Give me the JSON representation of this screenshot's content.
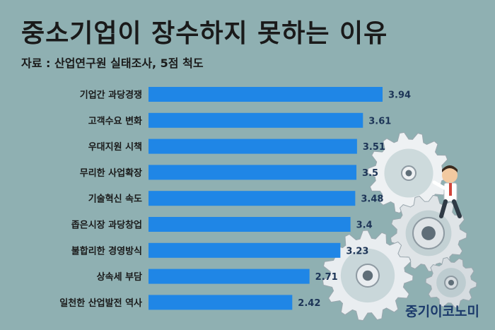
{
  "title": "중소기업이 장수하지 못하는 이유",
  "subtitle": "자료 : 산업연구원 실태조사, 5점 척도",
  "brand": "중기이코노미",
  "colors": {
    "background": "#8fb0b2",
    "bar": "#1f86e6",
    "value_text": "#1d3557",
    "brand": "#1b3a6b"
  },
  "chart_data": {
    "type": "bar",
    "orientation": "horizontal",
    "categories": [
      "기업간 과당경쟁",
      "고객수요 변화",
      "우대지원 시책",
      "무리한 사업확장",
      "기술혁신 속도",
      "좁은시장 과당창업",
      "불합리한 경영방식",
      "상속세 부담",
      "일천한 산업발전 역사"
    ],
    "values": [
      3.94,
      3.61,
      3.51,
      3.5,
      3.48,
      3.4,
      3.23,
      2.71,
      2.42
    ],
    "value_labels": [
      "3.94",
      "3.61",
      "3.51",
      "3.5",
      "3.48",
      "3.4",
      "3.23",
      "2.71",
      "2.42"
    ],
    "xlim": [
      0,
      3.94
    ],
    "grid": false
  }
}
